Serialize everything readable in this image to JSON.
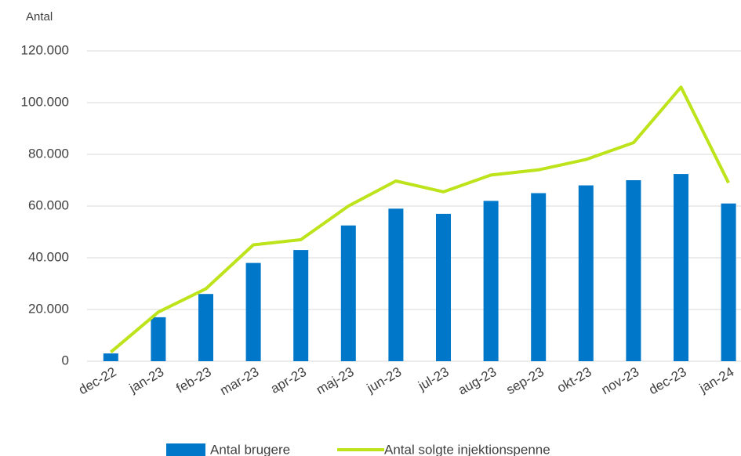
{
  "chart_data": {
    "type": "bar_line",
    "y_axis_label": "Antal",
    "categories": [
      "dec-22",
      "jan-23",
      "feb-23",
      "mar-23",
      "apr-23",
      "maj-23",
      "jun-23",
      "jul-23",
      "aug-23",
      "sep-23",
      "okt-23",
      "nov-23",
      "dec-23",
      "jan-24"
    ],
    "series": [
      {
        "name": "Antal brugere",
        "type": "bar",
        "color": "#0077c8",
        "values": [
          3000,
          17000,
          26000,
          38000,
          43000,
          52500,
          59000,
          57000,
          62000,
          65000,
          68000,
          70000,
          72400,
          61000
        ]
      },
      {
        "name": "Antal solgte injektionspenne",
        "type": "line",
        "color": "#bde31b",
        "values": [
          3500,
          19000,
          28000,
          45000,
          47000,
          60000,
          69700,
          65500,
          72000,
          74000,
          78000,
          84500,
          106000,
          69000
        ]
      }
    ],
    "ylim": [
      0,
      120000
    ],
    "yticks": [
      0,
      {
        "value": 20000,
        "label": "20.000"
      },
      {
        "value": 40000,
        "label": "40.000"
      },
      {
        "value": 60000,
        "label": "60.000"
      },
      {
        "value": 80000,
        "label": "80.000"
      },
      {
        "value": 100000,
        "label": "100.000"
      },
      {
        "value": 120000,
        "label": "120.000"
      }
    ],
    "grid": true,
    "legend": "bottom"
  }
}
